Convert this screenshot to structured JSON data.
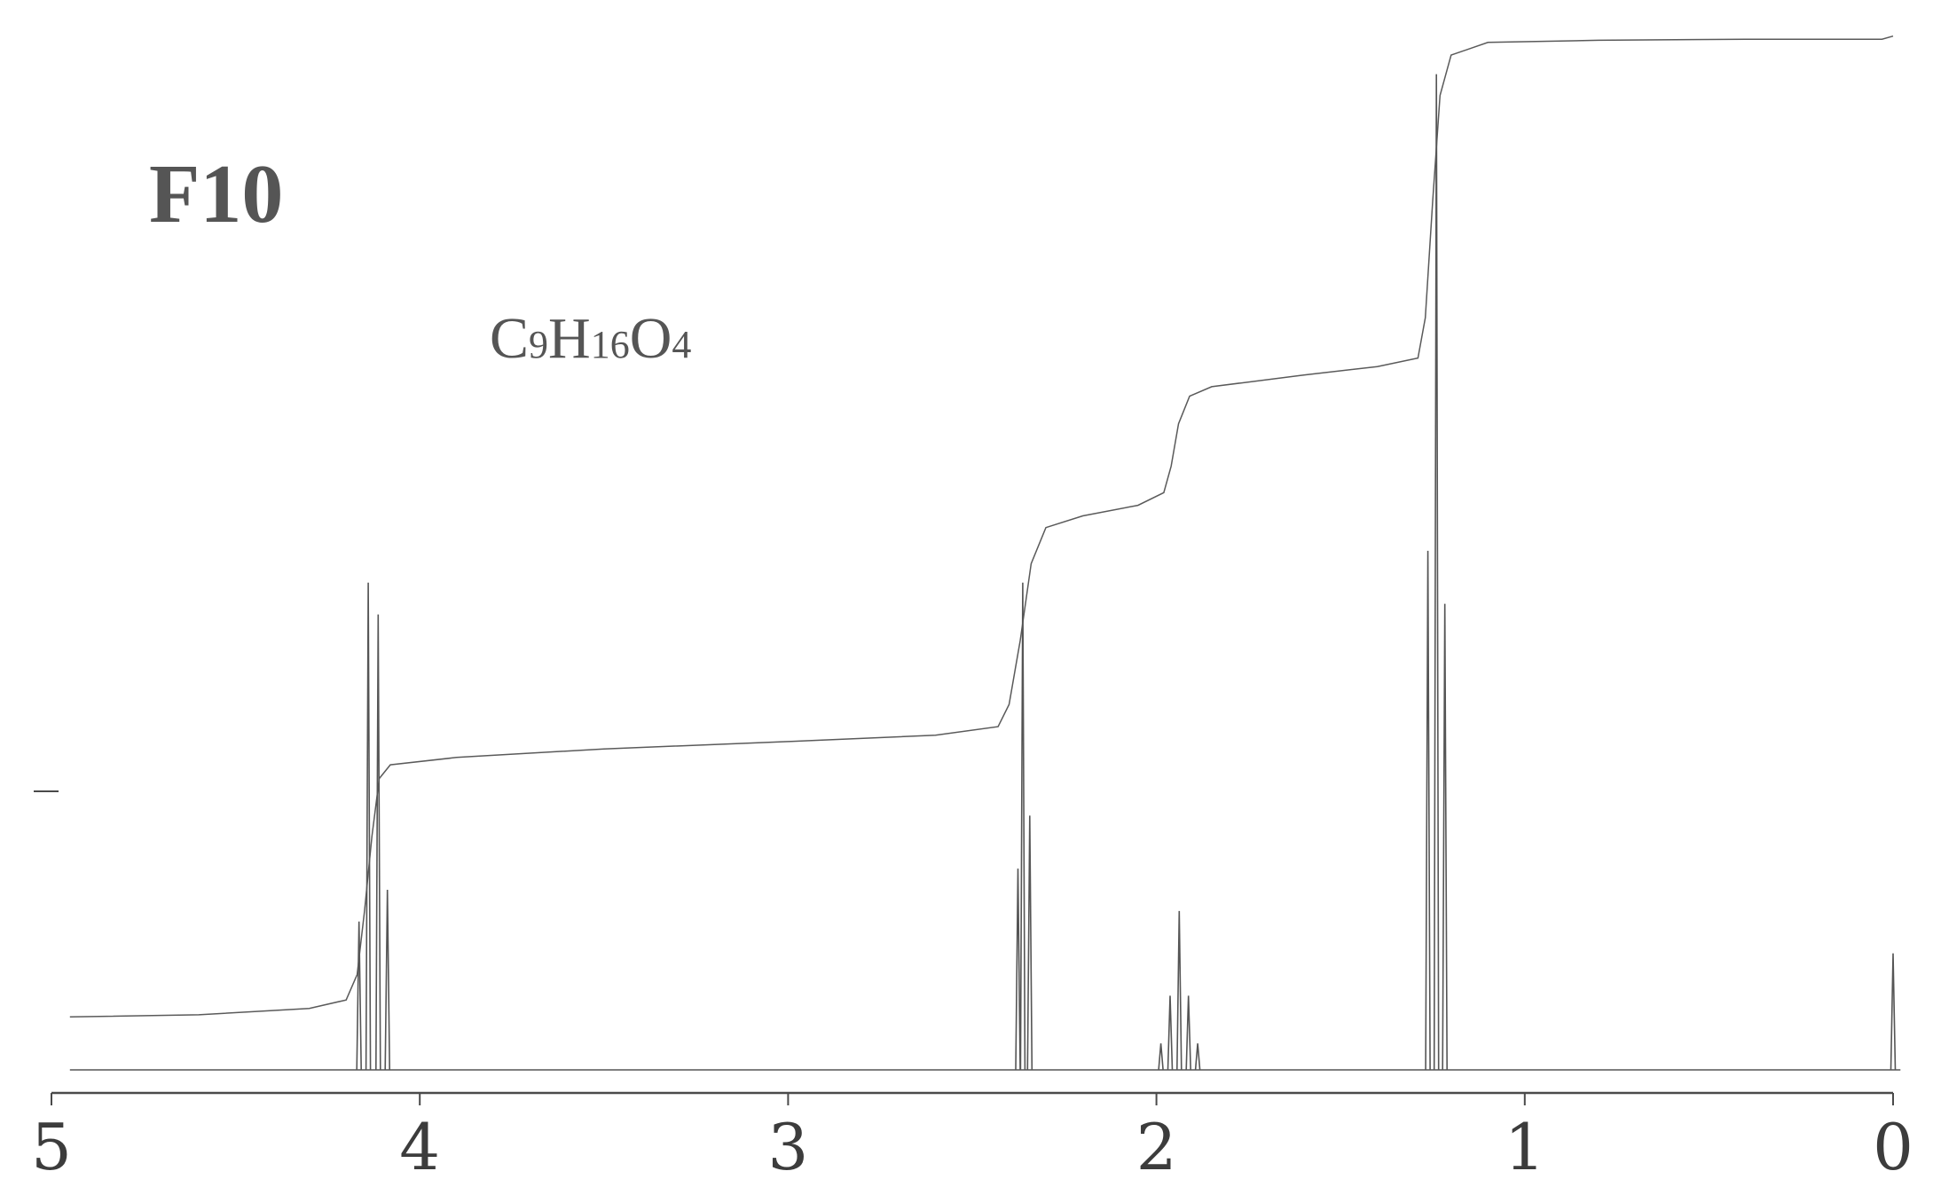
{
  "chart_data": {
    "type": "line",
    "annotations": {
      "sample_id": "F10",
      "formula": [
        {
          "text": "C",
          "sub": false
        },
        {
          "text": "9",
          "sub": true
        },
        {
          "text": "H",
          "sub": false
        },
        {
          "text": "16",
          "sub": true
        },
        {
          "text": "O",
          "sub": false
        },
        {
          "text": "4",
          "sub": true
        }
      ]
    },
    "x_axis": {
      "reversed": true,
      "range": [
        0,
        5
      ],
      "ticks": [
        5,
        4,
        3,
        2,
        1,
        0
      ],
      "tick_labels": [
        "5",
        "4",
        "3",
        "2",
        "1",
        "0"
      ]
    },
    "y_range": [
      0,
      100
    ],
    "spectrum_peaks": [
      {
        "ppm": 4.165,
        "height": 14
      },
      {
        "ppm": 4.14,
        "height": 46
      },
      {
        "ppm": 4.113,
        "height": 43
      },
      {
        "ppm": 4.088,
        "height": 17
      },
      {
        "ppm": 2.376,
        "height": 19
      },
      {
        "ppm": 2.363,
        "height": 46
      },
      {
        "ppm": 2.344,
        "height": 24
      },
      {
        "ppm": 1.988,
        "height": 2.5
      },
      {
        "ppm": 1.963,
        "height": 7
      },
      {
        "ppm": 1.938,
        "height": 15
      },
      {
        "ppm": 1.913,
        "height": 7
      },
      {
        "ppm": 1.888,
        "height": 2.5
      },
      {
        "ppm": 1.263,
        "height": 49
      },
      {
        "ppm": 1.24,
        "height": 94
      },
      {
        "ppm": 1.217,
        "height": 44
      },
      {
        "ppm": 0.0,
        "height": 11
      }
    ],
    "integral_curve": [
      [
        4.95,
        5.0
      ],
      [
        4.6,
        5.2
      ],
      [
        4.3,
        5.8
      ],
      [
        4.2,
        6.6
      ],
      [
        4.17,
        9.0
      ],
      [
        4.15,
        15.0
      ],
      [
        4.13,
        22.0
      ],
      [
        4.11,
        27.5
      ],
      [
        4.08,
        28.8
      ],
      [
        3.9,
        29.5
      ],
      [
        3.5,
        30.3
      ],
      [
        3.0,
        31.0
      ],
      [
        2.6,
        31.6
      ],
      [
        2.43,
        32.4
      ],
      [
        2.4,
        34.5
      ],
      [
        2.37,
        40.5
      ],
      [
        2.34,
        47.8
      ],
      [
        2.3,
        51.2
      ],
      [
        2.2,
        52.3
      ],
      [
        2.05,
        53.3
      ],
      [
        1.98,
        54.5
      ],
      [
        1.96,
        57.0
      ],
      [
        1.94,
        61.0
      ],
      [
        1.91,
        63.6
      ],
      [
        1.85,
        64.5
      ],
      [
        1.6,
        65.6
      ],
      [
        1.4,
        66.4
      ],
      [
        1.29,
        67.2
      ],
      [
        1.27,
        71.0
      ],
      [
        1.25,
        82.0
      ],
      [
        1.23,
        92.0
      ],
      [
        1.2,
        95.8
      ],
      [
        1.1,
        97.0
      ],
      [
        0.8,
        97.2
      ],
      [
        0.4,
        97.3
      ],
      [
        0.03,
        97.3
      ],
      [
        0.0,
        97.6
      ]
    ]
  }
}
